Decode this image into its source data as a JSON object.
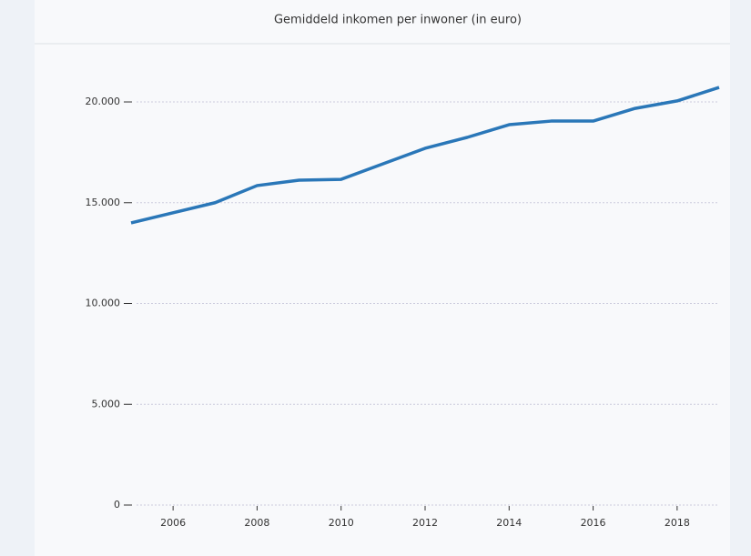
{
  "chart_data": {
    "type": "line",
    "title": "Gemiddeld inkomen per inwoner (in euro)",
    "x": [
      2005,
      2006,
      2007,
      2008,
      2009,
      2010,
      2011,
      2012,
      2013,
      2014,
      2015,
      2016,
      2017,
      2018,
      2019
    ],
    "series": [
      {
        "name": "Gemiddeld inkomen per inwoner",
        "color": "#2a77b8",
        "values": [
          14000,
          14500,
          15000,
          15850,
          16120,
          16160,
          16930,
          17700,
          18240,
          18870,
          19050,
          19050,
          19680,
          20050,
          20720
        ]
      }
    ],
    "xlim": [
      2005,
      2019
    ],
    "xticks": [
      2006,
      2008,
      2010,
      2012,
      2014,
      2016,
      2018
    ],
    "ylim": [
      0,
      22800
    ],
    "yticks": [
      0,
      {
        "value": 5000,
        "label": "5.000"
      },
      {
        "value": 10000,
        "label": "10.000"
      },
      {
        "value": 15000,
        "label": "15.000"
      },
      {
        "value": 20000,
        "label": "20.000"
      }
    ],
    "grid": true
  }
}
